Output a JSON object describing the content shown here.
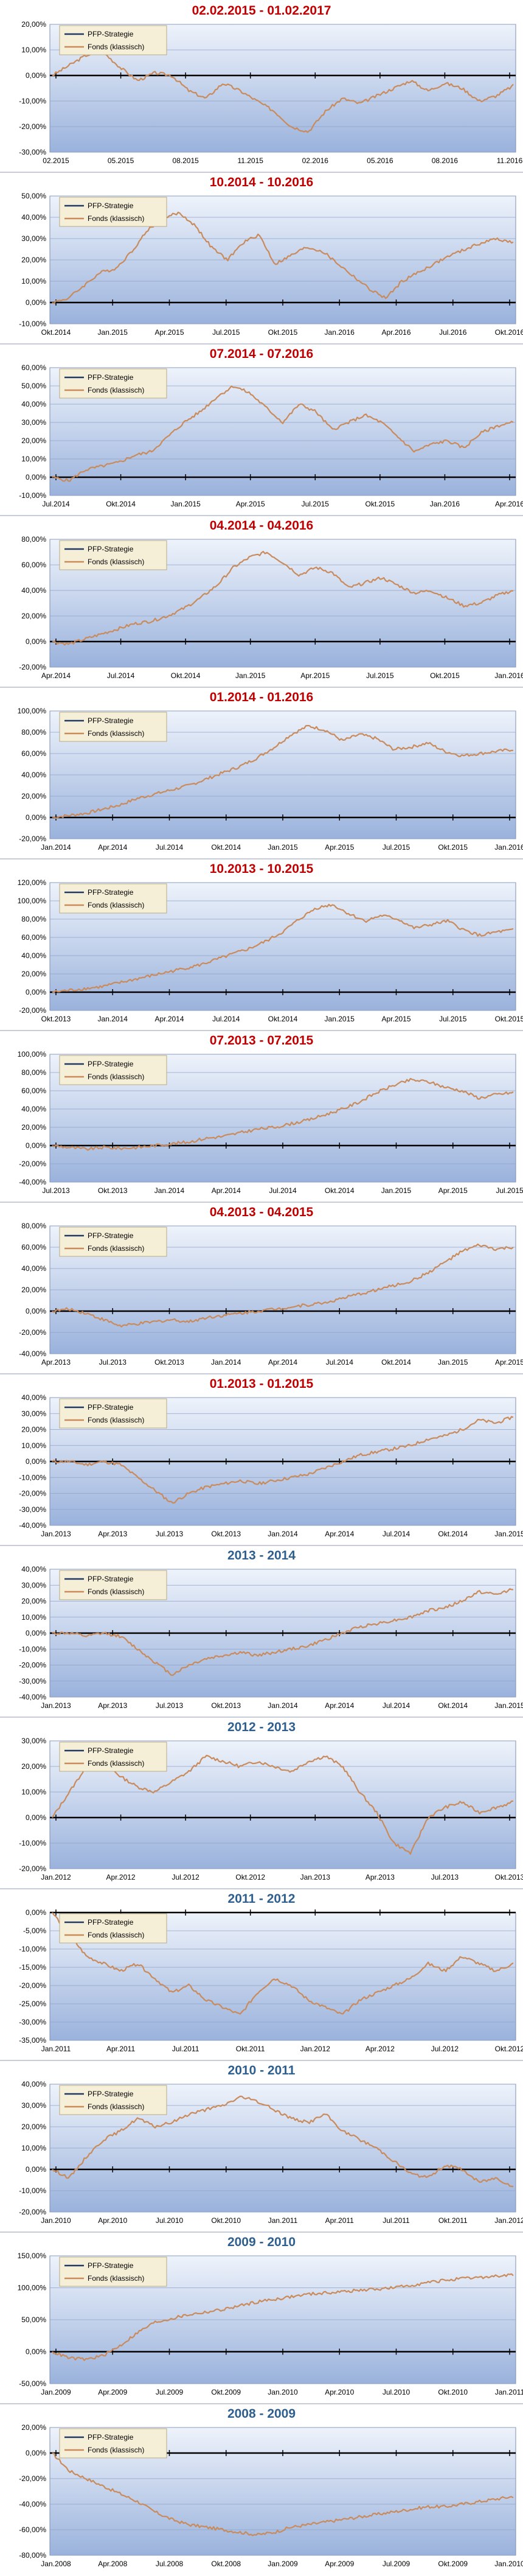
{
  "colors": {
    "title_red": "#c00000",
    "title_blue": "#2e5f8e",
    "strategy_line": "#1f3864",
    "fund_line": "#c98a5c",
    "plot_top": "#eef3fb",
    "plot_bottom": "#9ab2dc",
    "legend_bg": "#f6efd8"
  },
  "legend": {
    "strategy": "PFP-Strategie",
    "fund": "Fonds (klassisch)"
  },
  "chart_data": [
    {
      "type": "line",
      "title": "02.02.2015 - 01.02.2017",
      "title_color": "red",
      "yticks": [
        "20,00%",
        "10,00%",
        "0,00%",
        "-10,00%",
        "-20,00%",
        "-30,00%"
      ],
      "yrange": [
        -30,
        20
      ],
      "xticks": [
        "02.2015",
        "05.2015",
        "08.2015",
        "11.2015",
        "02.2016",
        "05.2016",
        "08.2016",
        "11.2016"
      ],
      "series": [
        {
          "name": "PFP-Strategie",
          "values": []
        },
        {
          "name": "Fonds (klassisch)",
          "values": [
            0,
            4,
            8,
            9,
            3,
            -2,
            1,
            0,
            -6,
            -9,
            -3,
            -6,
            -10,
            -14,
            -20,
            -22,
            -14,
            -9,
            -11,
            -8,
            -5,
            -2,
            -6,
            -3,
            -5,
            -10,
            -8,
            -4
          ]
        }
      ]
    },
    {
      "type": "line",
      "title": "10.2014 - 10.2016",
      "title_color": "red",
      "yticks": [
        "50,00%",
        "40,00%",
        "30,00%",
        "20,00%",
        "10,00%",
        "0,00%",
        "-10,00%"
      ],
      "yrange": [
        -10,
        50
      ],
      "xticks": [
        "Okt.2014",
        "Jan.2015",
        "Apr.2015",
        "Jul.2015",
        "Okt.2015",
        "Jan.2016",
        "Apr.2016",
        "Jul.2016",
        "Okt.2016"
      ],
      "series": [
        {
          "name": "PFP-Strategie",
          "values": []
        },
        {
          "name": "Fonds (klassisch)",
          "values": [
            0,
            2,
            8,
            14,
            16,
            24,
            34,
            40,
            42,
            36,
            26,
            20,
            28,
            32,
            18,
            22,
            26,
            24,
            18,
            12,
            6,
            2,
            10,
            14,
            18,
            22,
            25,
            28,
            30,
            28
          ]
        }
      ]
    },
    {
      "type": "line",
      "title": "07.2014 - 07.2016",
      "title_color": "red",
      "yticks": [
        "60,00%",
        "50,00%",
        "40,00%",
        "30,00%",
        "20,00%",
        "10,00%",
        "0,00%",
        "-10,00%"
      ],
      "yrange": [
        -10,
        60
      ],
      "xticks": [
        "Jul.2014",
        "Okt.2014",
        "Jan.2015",
        "Apr.2015",
        "Jul.2015",
        "Okt.2015",
        "Jan.2016",
        "Apr.2016"
      ],
      "series": [
        {
          "name": "PFP-Strategie",
          "values": []
        },
        {
          "name": "Fonds (klassisch)",
          "values": [
            0,
            -2,
            4,
            6,
            8,
            12,
            14,
            22,
            30,
            36,
            44,
            50,
            46,
            38,
            30,
            40,
            36,
            26,
            30,
            34,
            30,
            22,
            14,
            18,
            20,
            16,
            24,
            28,
            30
          ]
        }
      ]
    },
    {
      "type": "line",
      "title": "04.2014 - 04.2016",
      "title_color": "red",
      "yticks": [
        "80,00%",
        "60,00%",
        "40,00%",
        "20,00%",
        "0,00%",
        "-20,00%"
      ],
      "yrange": [
        -20,
        80
      ],
      "xticks": [
        "Apr.2014",
        "Jul.2014",
        "Okt.2014",
        "Jan.2015",
        "Apr.2015",
        "Jul.2015",
        "Okt.2015",
        "Jan.2016"
      ],
      "series": [
        {
          "name": "PFP-Strategie",
          "values": []
        },
        {
          "name": "Fonds (klassisch)",
          "values": [
            0,
            -2,
            2,
            6,
            10,
            14,
            16,
            20,
            26,
            34,
            44,
            58,
            66,
            70,
            62,
            52,
            58,
            54,
            42,
            46,
            50,
            44,
            38,
            40,
            34,
            28,
            30,
            36,
            40
          ]
        }
      ]
    },
    {
      "type": "line",
      "title": "01.2014 - 01.2016",
      "title_color": "red",
      "yticks": [
        "100,00%",
        "80,00%",
        "60,00%",
        "40,00%",
        "20,00%",
        "0,00%",
        "-20,00%"
      ],
      "yrange": [
        -20,
        100
      ],
      "xticks": [
        "Jan.2014",
        "Apr.2014",
        "Jul.2014",
        "Okt.2014",
        "Jan.2015",
        "Apr.2015",
        "Jul.2015",
        "Okt.2015",
        "Jan.2016"
      ],
      "series": [
        {
          "name": "PFP-Strategie",
          "values": []
        },
        {
          "name": "Fonds (klassisch)",
          "values": [
            0,
            2,
            4,
            8,
            12,
            18,
            22,
            26,
            30,
            36,
            42,
            48,
            56,
            66,
            78,
            86,
            82,
            72,
            78,
            74,
            64,
            66,
            70,
            62,
            58,
            60,
            62,
            64
          ]
        }
      ]
    },
    {
      "type": "line",
      "title": "10.2013 - 10.2015",
      "title_color": "red",
      "yticks": [
        "120,00%",
        "100,00%",
        "80,00%",
        "60,00%",
        "40,00%",
        "20,00%",
        "0,00%",
        "-20,00%"
      ],
      "yrange": [
        -20,
        120
      ],
      "xticks": [
        "Okt.2013",
        "Jan.2014",
        "Apr.2014",
        "Jul.2014",
        "Okt.2014",
        "Jan.2015",
        "Apr.2015",
        "Jul.2015",
        "Okt.2015"
      ],
      "series": [
        {
          "name": "PFP-Strategie",
          "values": []
        },
        {
          "name": "Fonds (klassisch)",
          "values": [
            0,
            2,
            4,
            6,
            10,
            14,
            18,
            22,
            26,
            30,
            36,
            42,
            48,
            56,
            66,
            80,
            92,
            96,
            86,
            78,
            84,
            80,
            70,
            74,
            78,
            68,
            62,
            66,
            68
          ]
        }
      ]
    },
    {
      "type": "line",
      "title": "07.2013 - 07.2015",
      "title_color": "red",
      "yticks": [
        "100,00%",
        "80,00%",
        "60,00%",
        "40,00%",
        "20,00%",
        "0,00%",
        "-20,00%",
        "-40,00%"
      ],
      "yrange": [
        -40,
        100
      ],
      "xticks": [
        "Jul.2013",
        "Okt.2013",
        "Jan.2014",
        "Apr.2014",
        "Jul.2014",
        "Okt.2014",
        "Jan.2015",
        "Apr.2015",
        "Jul.2015"
      ],
      "series": [
        {
          "name": "PFP-Strategie",
          "values": []
        },
        {
          "name": "Fonds (klassisch)",
          "values": [
            0,
            -2,
            -4,
            -2,
            -3,
            -2,
            0,
            2,
            4,
            8,
            10,
            14,
            18,
            20,
            24,
            28,
            34,
            40,
            48,
            58,
            66,
            72,
            70,
            64,
            60,
            52,
            56,
            58
          ]
        }
      ]
    },
    {
      "type": "line",
      "title": "04.2013 - 04.2015",
      "title_color": "red",
      "yticks": [
        "80,00%",
        "60,00%",
        "40,00%",
        "20,00%",
        "0,00%",
        "-20,00%",
        "-40,00%"
      ],
      "yrange": [
        -40,
        80
      ],
      "xticks": [
        "Apr.2013",
        "Jul.2013",
        "Okt.2013",
        "Jan.2014",
        "Apr.2014",
        "Jul.2014",
        "Okt.2014",
        "Jan.2015",
        "Apr.2015"
      ],
      "series": [
        {
          "name": "PFP-Strategie",
          "values": []
        },
        {
          "name": "Fonds (klassisch)",
          "values": [
            0,
            2,
            -2,
            -8,
            -14,
            -12,
            -10,
            -8,
            -10,
            -6,
            -4,
            -2,
            0,
            2,
            4,
            6,
            8,
            12,
            16,
            20,
            24,
            28,
            36,
            46,
            56,
            62,
            58,
            60
          ]
        }
      ]
    },
    {
      "type": "line",
      "title": "01.2013 - 01.2015",
      "title_color": "red",
      "yticks": [
        "40,00%",
        "30,00%",
        "20,00%",
        "10,00%",
        "0,00%",
        "-10,00%",
        "-20,00%",
        "-30,00%",
        "-40,00%"
      ],
      "yrange": [
        -40,
        40
      ],
      "xticks": [
        "Jan.2013",
        "Apr.2013",
        "Jul.2013",
        "Okt.2013",
        "Jan.2014",
        "Apr.2014",
        "Jul.2014",
        "Okt.2014",
        "Jan.2015"
      ],
      "series": [
        {
          "name": "PFP-Strategie",
          "values": []
        },
        {
          "name": "Fonds (klassisch)",
          "values": [
            0,
            0,
            -2,
            0,
            -2,
            -10,
            -18,
            -26,
            -20,
            -16,
            -14,
            -12,
            -14,
            -12,
            -10,
            -8,
            -4,
            0,
            4,
            6,
            8,
            10,
            14,
            16,
            20,
            26,
            24,
            28
          ]
        }
      ]
    },
    {
      "type": "line",
      "title": "2013 - 2014",
      "title_color": "blue",
      "yticks": [
        "40,00%",
        "30,00%",
        "20,00%",
        "10,00%",
        "0,00%",
        "-10,00%",
        "-20,00%",
        "-30,00%",
        "-40,00%"
      ],
      "yrange": [
        -40,
        40
      ],
      "xticks": [
        "Jan.2013",
        "Apr.2013",
        "Jul.2013",
        "Okt.2013",
        "Jan.2014",
        "Apr.2014",
        "Jul.2014",
        "Okt.2014",
        "Jan.2015"
      ],
      "series": [
        {
          "name": "PFP-Strategie",
          "values": []
        },
        {
          "name": "Fonds (klassisch)",
          "values": [
            0,
            0,
            -2,
            0,
            -2,
            -10,
            -18,
            -26,
            -20,
            -16,
            -14,
            -12,
            -14,
            -12,
            -10,
            -8,
            -4,
            0,
            4,
            6,
            8,
            10,
            14,
            16,
            20,
            26,
            24,
            28
          ]
        }
      ]
    },
    {
      "type": "line",
      "title": "2012 - 2013",
      "title_color": "blue",
      "yticks": [
        "30,00%",
        "20,00%",
        "10,00%",
        "0,00%",
        "-10,00%",
        "-20,00%"
      ],
      "yrange": [
        -20,
        30
      ],
      "xticks": [
        "Jan.2012",
        "Apr.2012",
        "Jul.2012",
        "Okt.2012",
        "Jan.2013",
        "Apr.2013",
        "Jul.2013",
        "Okt.2013"
      ],
      "series": [
        {
          "name": "PFP-Strategie",
          "values": []
        },
        {
          "name": "Fonds (klassisch)",
          "values": [
            0,
            10,
            20,
            22,
            16,
            12,
            10,
            14,
            18,
            24,
            22,
            20,
            22,
            20,
            18,
            22,
            24,
            20,
            10,
            2,
            -10,
            -14,
            0,
            4,
            6,
            2,
            4,
            6
          ]
        }
      ]
    },
    {
      "type": "line",
      "title": "2011 - 2012",
      "title_color": "blue",
      "yticks": [
        "0,00%",
        "-5,00%",
        "-10,00%",
        "-15,00%",
        "-20,00%",
        "-25,00%",
        "-30,00%",
        "-35,00%"
      ],
      "yrange": [
        -35,
        0
      ],
      "xticks": [
        "Jan.2011",
        "Apr.2011",
        "Jul.2011",
        "Okt.2011",
        "Jan.2012",
        "Apr.2012",
        "Jul.2012",
        "Okt.2012"
      ],
      "series": [
        {
          "name": "PFP-Strategie",
          "values": []
        },
        {
          "name": "Fonds (klassisch)",
          "values": [
            0,
            -6,
            -12,
            -14,
            -16,
            -14,
            -18,
            -22,
            -20,
            -24,
            -26,
            -28,
            -22,
            -18,
            -20,
            -24,
            -26,
            -28,
            -24,
            -22,
            -20,
            -18,
            -14,
            -16,
            -12,
            -14,
            -16,
            -14
          ]
        }
      ]
    },
    {
      "type": "line",
      "title": "2010 - 2011",
      "title_color": "blue",
      "yticks": [
        "40,00%",
        "30,00%",
        "20,00%",
        "10,00%",
        "0,00%",
        "-10,00%",
        "-20,00%"
      ],
      "yrange": [
        -20,
        40
      ],
      "xticks": [
        "Jan.2010",
        "Apr.2010",
        "Jul.2010",
        "Okt.2010",
        "Jan.2011",
        "Apr.2011",
        "Jul.2011",
        "Okt.2011",
        "Jan.2012"
      ],
      "series": [
        {
          "name": "PFP-Strategie",
          "values": []
        },
        {
          "name": "Fonds (klassisch)",
          "values": [
            0,
            -4,
            6,
            14,
            18,
            24,
            20,
            22,
            26,
            28,
            30,
            34,
            32,
            28,
            24,
            22,
            26,
            18,
            14,
            10,
            4,
            -2,
            -4,
            2,
            0,
            -6,
            -4,
            -8
          ]
        }
      ]
    },
    {
      "type": "line",
      "title": "2009 - 2010",
      "title_color": "blue",
      "yticks": [
        "150,00%",
        "100,00%",
        "50,00%",
        "0,00%",
        "-50,00%"
      ],
      "yrange": [
        -50,
        150
      ],
      "xticks": [
        "Jan.2009",
        "Apr.2009",
        "Jul.2009",
        "Okt.2009",
        "Jan.2010",
        "Apr.2010",
        "Jul.2010",
        "Okt.2010",
        "Jan.2011"
      ],
      "series": [
        {
          "name": "PFP-Strategie",
          "values": []
        },
        {
          "name": "Fonds (klassisch)",
          "values": [
            0,
            -10,
            -12,
            -6,
            10,
            30,
            46,
            52,
            58,
            62,
            66,
            72,
            78,
            82,
            86,
            90,
            92,
            94,
            96,
            98,
            100,
            104,
            108,
            112,
            114,
            116,
            118,
            120
          ]
        }
      ]
    },
    {
      "type": "line",
      "title": "2008 - 2009",
      "title_color": "blue",
      "yticks": [
        "20,00%",
        "0,00%",
        "-20,00%",
        "-40,00%",
        "-60,00%",
        "-80,00%"
      ],
      "yrange": [
        -80,
        20
      ],
      "xticks": [
        "Jan.2008",
        "Apr.2008",
        "Jul.2008",
        "Okt.2008",
        "Jan.2009",
        "Apr.2009",
        "Jul.2009",
        "Okt.2009",
        "Jan.2010"
      ],
      "series": [
        {
          "name": "PFP-Strategie",
          "values": []
        },
        {
          "name": "Fonds (klassisch)",
          "values": [
            0,
            -14,
            -20,
            -26,
            -32,
            -38,
            -46,
            -52,
            -56,
            -58,
            -60,
            -62,
            -64,
            -62,
            -58,
            -56,
            -54,
            -52,
            -50,
            -48,
            -46,
            -44,
            -42,
            -42,
            -40,
            -38,
            -36,
            -34
          ]
        }
      ]
    }
  ]
}
